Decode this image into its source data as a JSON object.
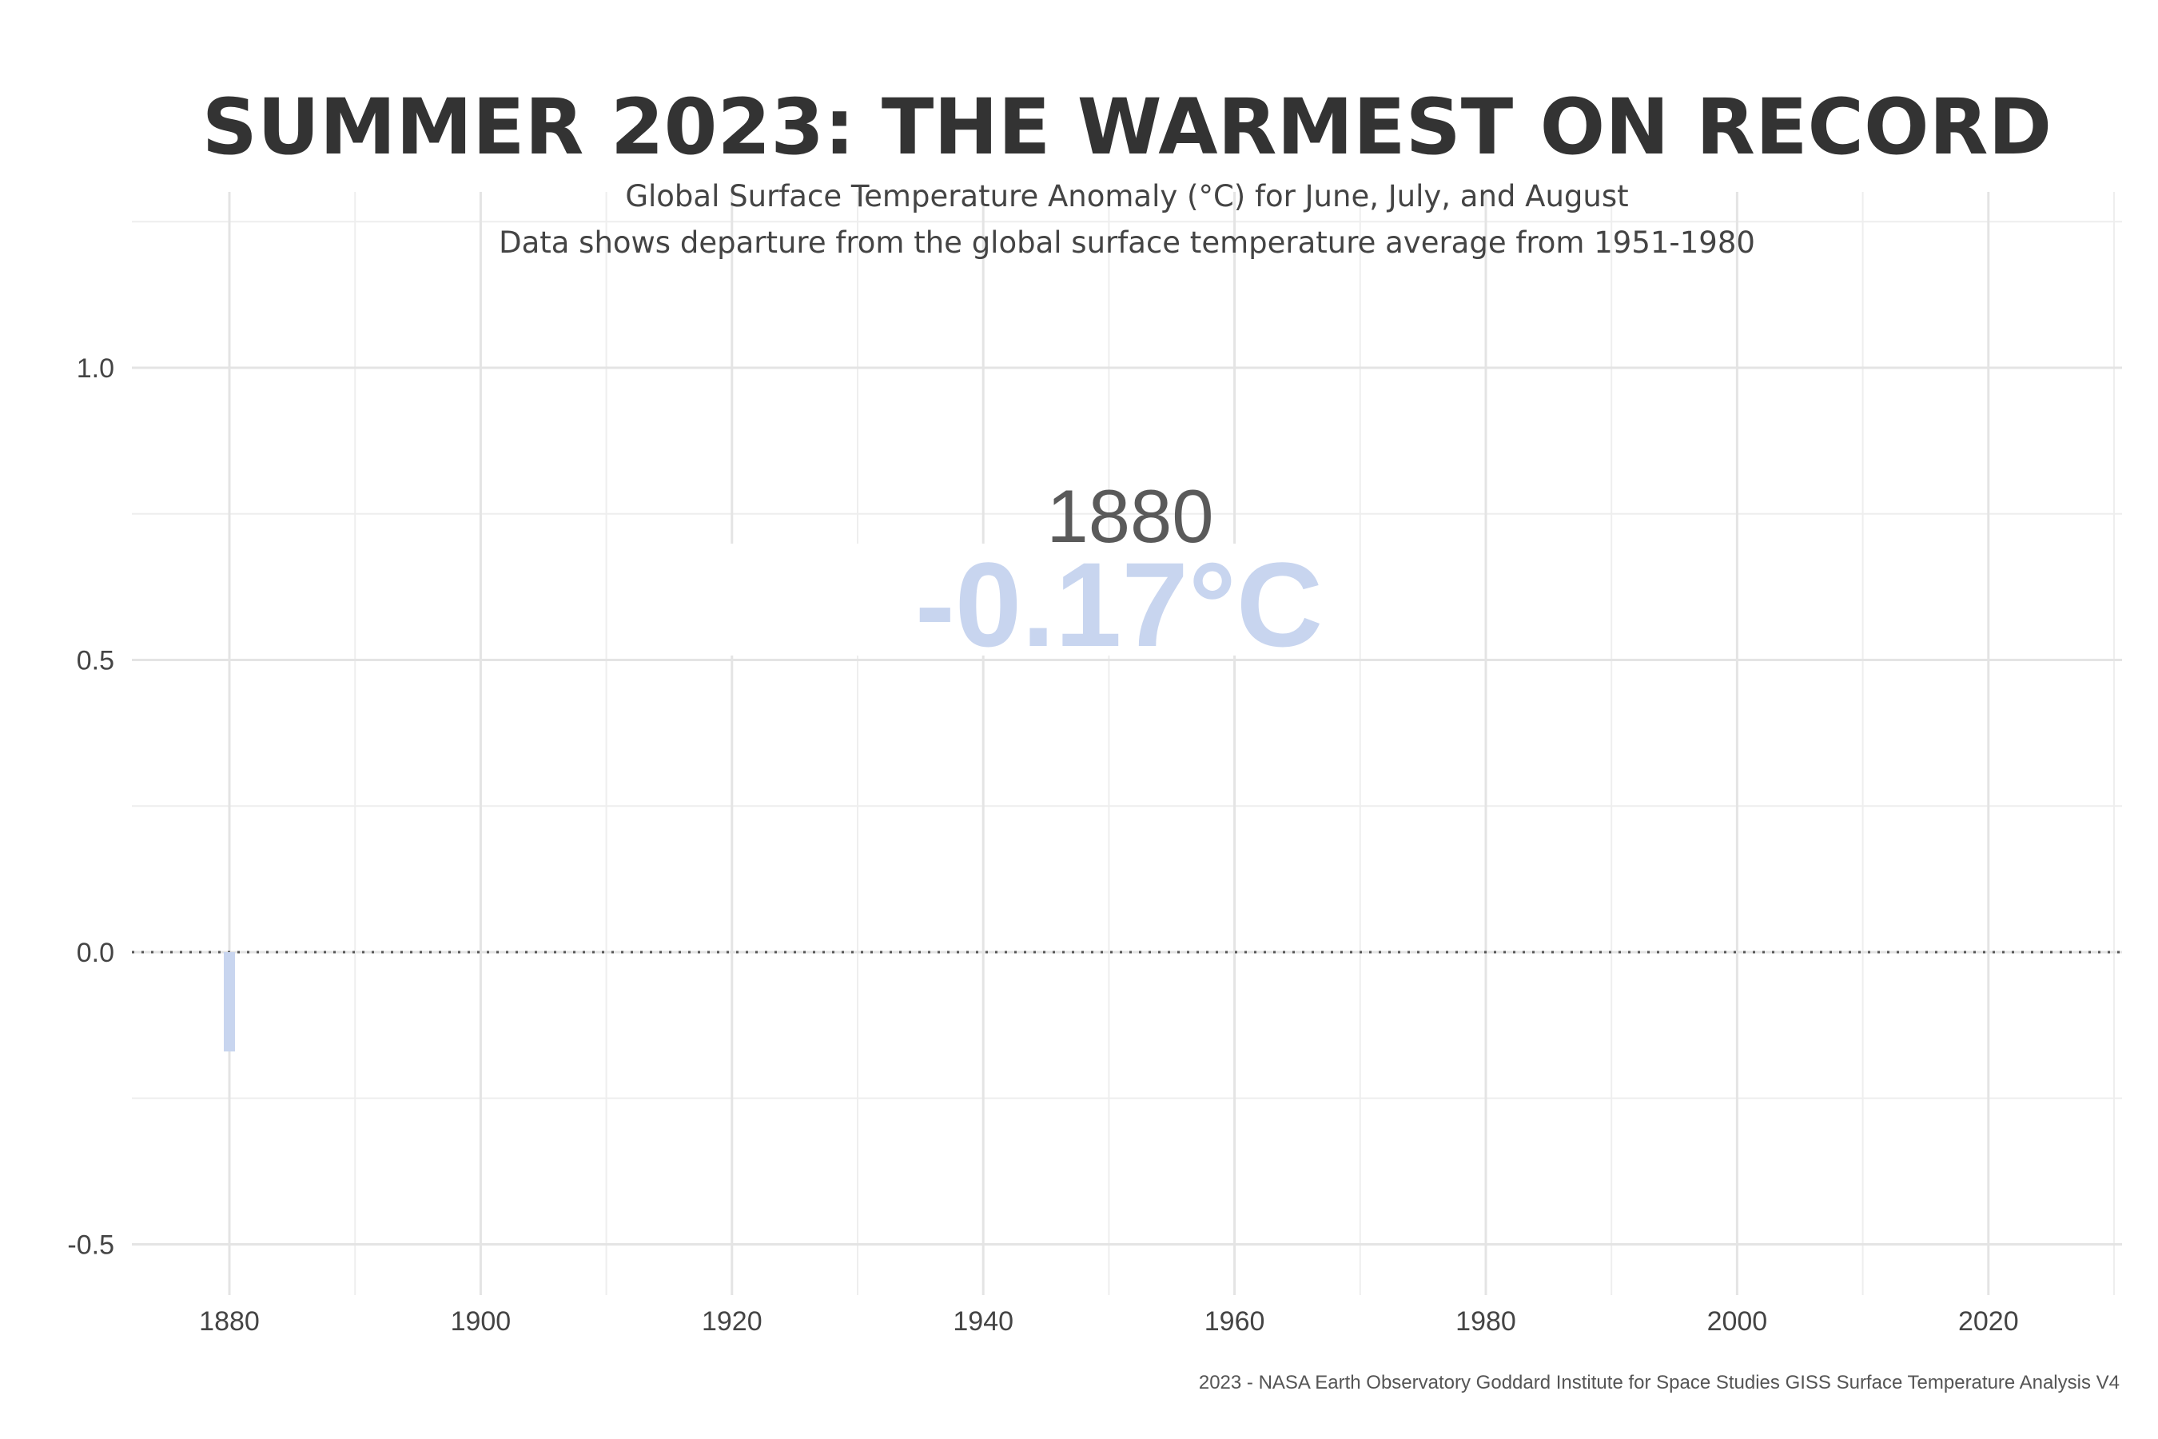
{
  "chart_data": {
    "type": "bar",
    "title": "SUMMER 2023: THE WARMEST ON RECORD",
    "subtitle": [
      "Global Surface Temperature Anomaly (°C) for June, July, and August",
      "Data shows departure from the global surface temperature average from 1951-1980"
    ],
    "caption": "2023 - NASA Earth Observatory Goddard Institute for Space Studies GISS Surface Temperature Analysis V4",
    "xlabel": "",
    "ylabel": "",
    "xlim": [
      1873,
      2031
    ],
    "ylim": [
      -0.58,
      1.3
    ],
    "x_ticks": [
      1880,
      1900,
      1920,
      1940,
      1960,
      1980,
      2000,
      2020
    ],
    "y_ticks": [
      -0.5,
      0.0,
      0.5,
      1.0
    ],
    "y_tick_labels": [
      "-0.5",
      "0.0",
      "0.5",
      "1.0"
    ],
    "reference_line": {
      "y": 0,
      "style": "dotted"
    },
    "grid": true,
    "legend": "none",
    "x": [
      1880
    ],
    "values": [
      -0.17
    ],
    "bar_color": "#c8d5ef",
    "annotation": {
      "year": "1880",
      "value": "-0.17°C",
      "value_color": "#c8d5ef"
    }
  }
}
